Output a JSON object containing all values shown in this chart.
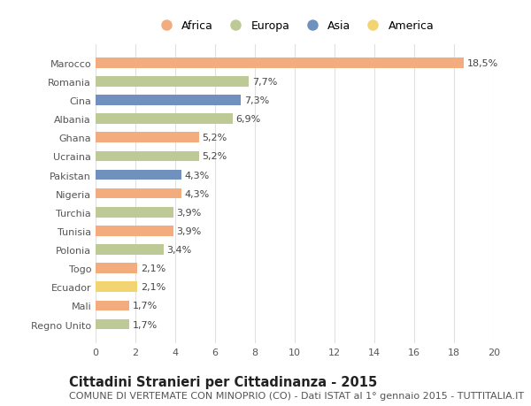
{
  "countries": [
    "Marocco",
    "Romania",
    "Cina",
    "Albania",
    "Ghana",
    "Ucraina",
    "Pakistan",
    "Nigeria",
    "Turchia",
    "Tunisia",
    "Polonia",
    "Togo",
    "Ecuador",
    "Mali",
    "Regno Unito"
  ],
  "values": [
    18.5,
    7.7,
    7.3,
    6.9,
    5.2,
    5.2,
    4.3,
    4.3,
    3.9,
    3.9,
    3.4,
    2.1,
    2.1,
    1.7,
    1.7
  ],
  "labels": [
    "18,5%",
    "7,7%",
    "7,3%",
    "6,9%",
    "5,2%",
    "5,2%",
    "4,3%",
    "4,3%",
    "3,9%",
    "3,9%",
    "3,4%",
    "2,1%",
    "2,1%",
    "1,7%",
    "1,7%"
  ],
  "continents": [
    "Africa",
    "Europa",
    "Asia",
    "Europa",
    "Africa",
    "Europa",
    "Asia",
    "Africa",
    "Europa",
    "Africa",
    "Europa",
    "Africa",
    "America",
    "Africa",
    "Europa"
  ],
  "continent_colors": {
    "Africa": "#F2AC7E",
    "Europa": "#BDCA96",
    "Asia": "#7090BE",
    "America": "#F2D472"
  },
  "legend_order": [
    "Africa",
    "Europa",
    "Asia",
    "America"
  ],
  "bg_color": "#ffffff",
  "grid_color": "#e0e0e0",
  "xlim": [
    0,
    20
  ],
  "xticks": [
    0,
    2,
    4,
    6,
    8,
    10,
    12,
    14,
    16,
    18,
    20
  ],
  "title": "Cittadini Stranieri per Cittadinanza - 2015",
  "subtitle": "COMUNE DI VERTEMATE CON MINOPRIO (CO) - Dati ISTAT al 1° gennaio 2015 - TUTTITALIA.IT",
  "title_fontsize": 10.5,
  "subtitle_fontsize": 8.0,
  "label_fontsize": 8.0,
  "tick_fontsize": 8.0,
  "bar_height": 0.55
}
